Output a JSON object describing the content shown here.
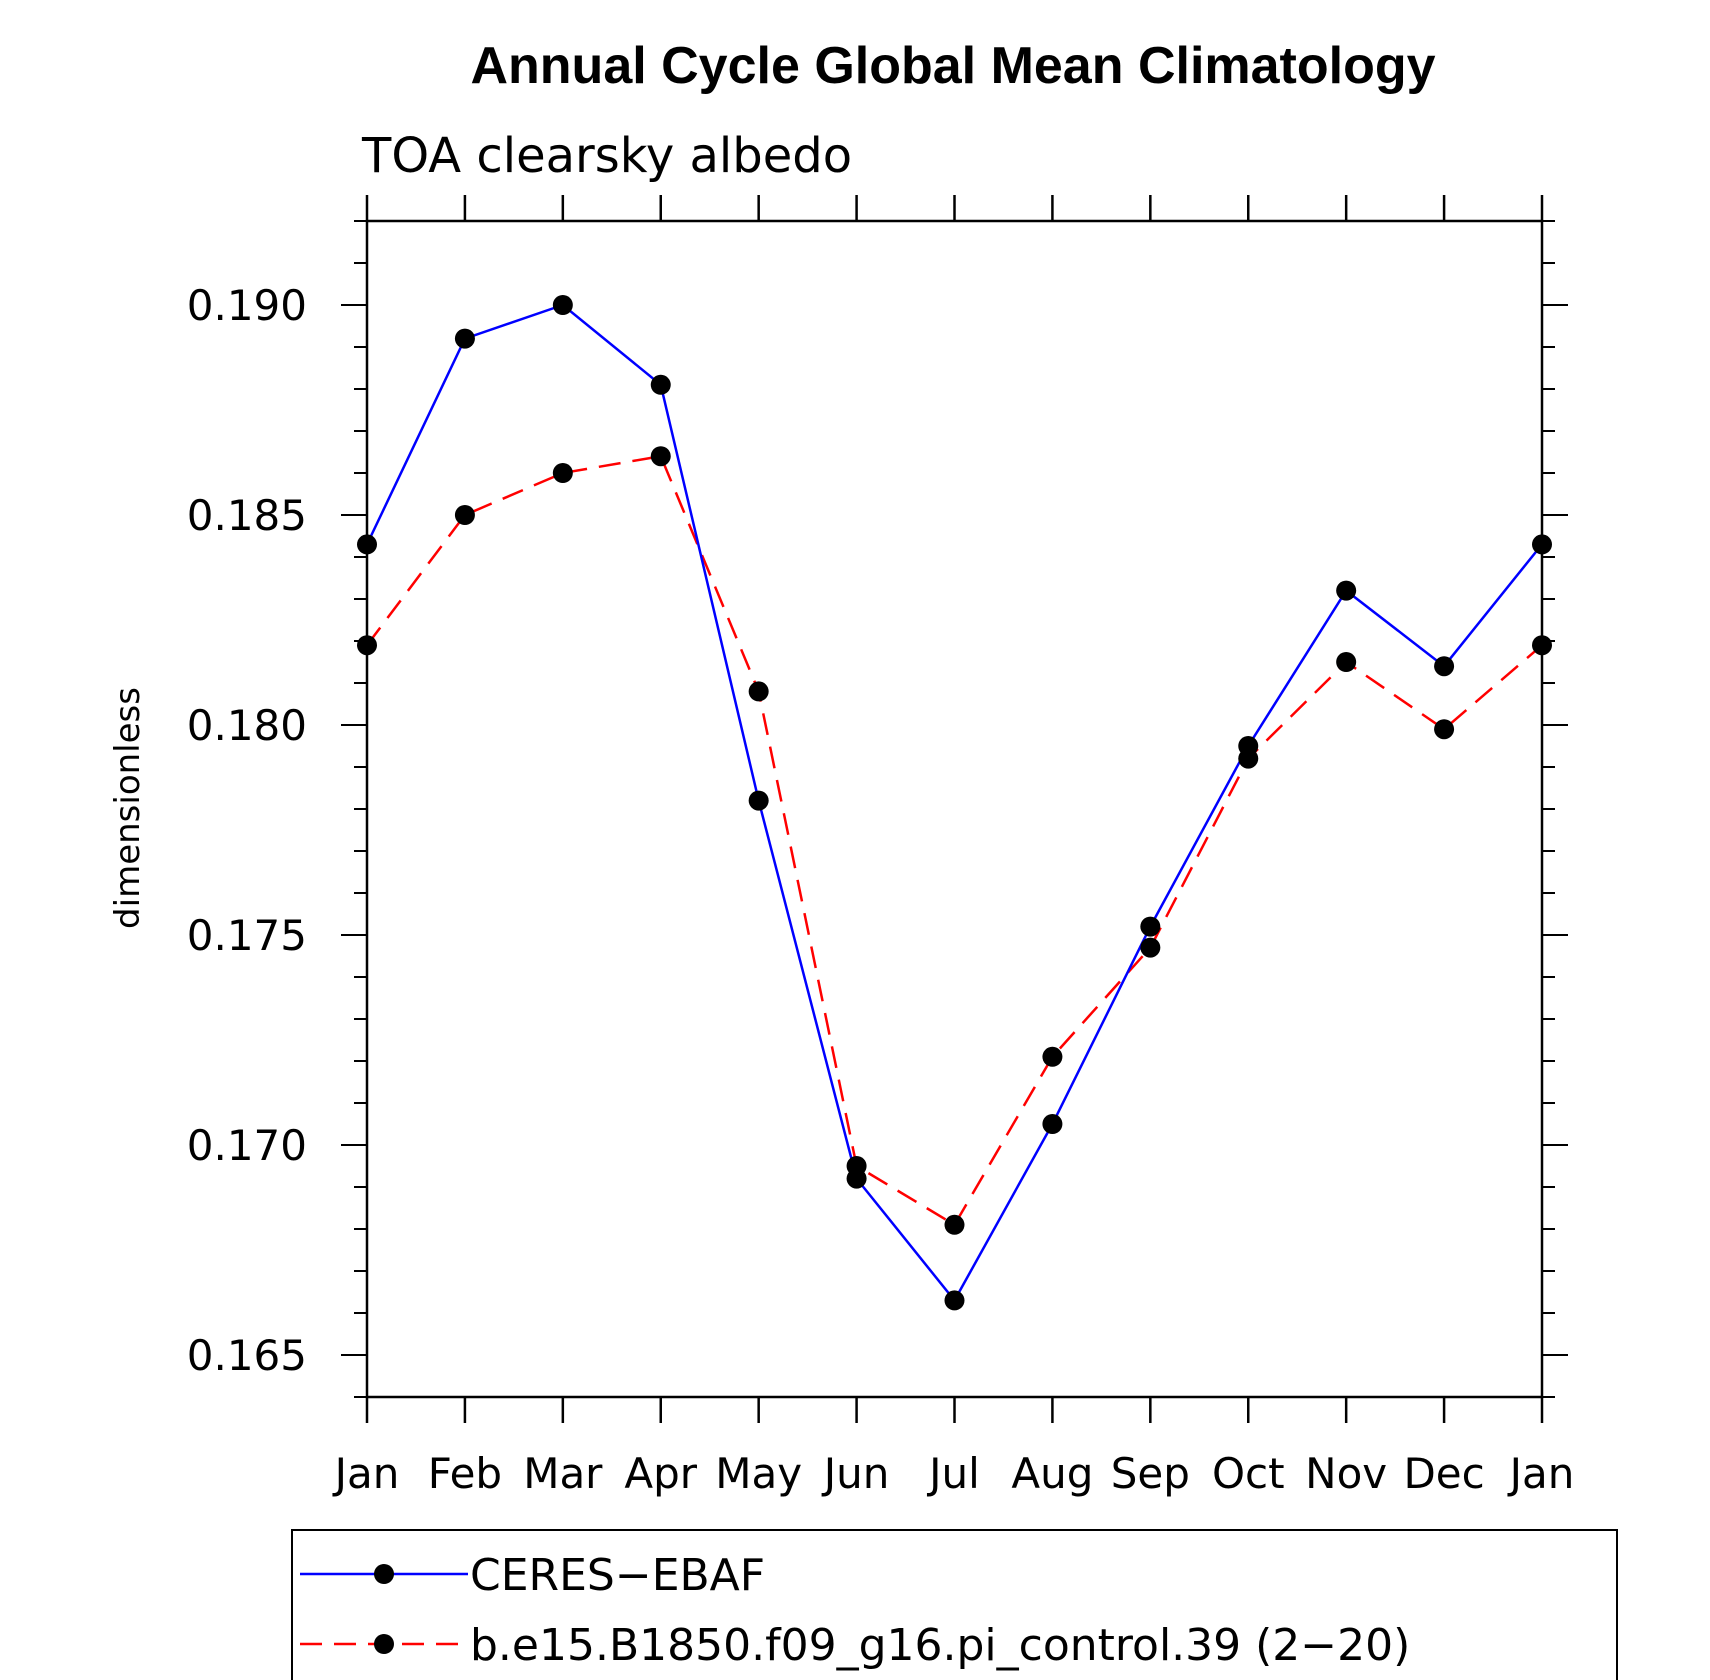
{
  "chart_data": {
    "type": "line",
    "title": "Annual Cycle Global Mean Climatology",
    "subtitle": "TOA clearsky albedo",
    "xlabel": "",
    "ylabel": "dimensionless",
    "categories": [
      "Jan",
      "Feb",
      "Mar",
      "Apr",
      "May",
      "Jun",
      "Jul",
      "Aug",
      "Sep",
      "Oct",
      "Nov",
      "Dec",
      "Jan"
    ],
    "ylim": [
      0.164,
      0.192
    ],
    "y_ticks": [
      "0.165",
      "0.170",
      "0.175",
      "0.180",
      "0.185",
      "0.190"
    ],
    "grid": false,
    "legend_position": "bottom",
    "series": [
      {
        "name": "CERES−EBAF",
        "color": "#0000ff",
        "line_style": "solid",
        "marker": "filled-circle",
        "values": [
          0.1843,
          0.1892,
          0.19,
          0.1881,
          0.1782,
          0.1692,
          0.1663,
          0.1705,
          0.1752,
          0.1795,
          0.1832,
          0.1814,
          0.1843
        ]
      },
      {
        "name": "b.e15.B1850.f09_g16.pi_control.39 (2−20)",
        "color": "#ff0000",
        "line_style": "dashed",
        "marker": "filled-circle",
        "values": [
          0.1819,
          0.185,
          0.186,
          0.1864,
          0.1808,
          0.1695,
          0.1681,
          0.1721,
          0.1747,
          0.1792,
          0.1815,
          0.1799,
          0.1819
        ]
      }
    ]
  }
}
